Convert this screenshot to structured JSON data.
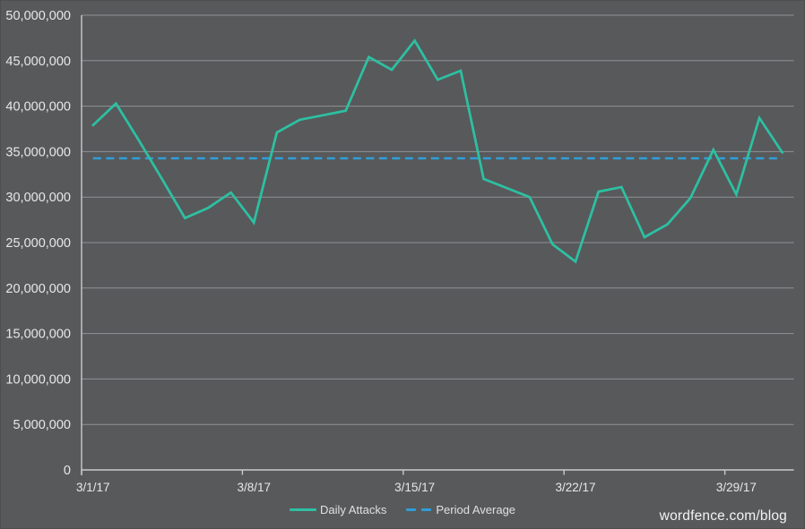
{
  "watermark": {
    "text": "wordfence.com/blog"
  },
  "colors": {
    "background": "#57595B",
    "gridline": "#8F9194",
    "axis": "#C9CBCD",
    "label_text": "#E7E8E9",
    "daily_attacks": "#2DC0A2",
    "period_average": "#2E9FD9"
  },
  "chart_data": {
    "type": "line",
    "title": "",
    "xlabel": "",
    "ylabel": "",
    "grid": "horizontal",
    "legend_position": "bottom",
    "ylim": [
      0,
      50000000
    ],
    "x": [
      "3/1/17",
      "3/2/17",
      "3/3/17",
      "3/4/17",
      "3/5/17",
      "3/6/17",
      "3/7/17",
      "3/8/17",
      "3/9/17",
      "3/10/17",
      "3/11/17",
      "3/12/17",
      "3/13/17",
      "3/14/17",
      "3/15/17",
      "3/16/17",
      "3/17/17",
      "3/18/17",
      "3/19/17",
      "3/20/17",
      "3/21/17",
      "3/22/17",
      "3/23/17",
      "3/24/17",
      "3/25/17",
      "3/26/17",
      "3/27/17",
      "3/28/17",
      "3/29/17",
      "3/30/17",
      "3/31/17"
    ],
    "series": [
      {
        "name": "Daily Attacks",
        "color": "#2DC0A2",
        "line_style": "solid",
        "values": [
          37900000,
          40300000,
          36200000,
          32000000,
          27700000,
          28800000,
          30500000,
          27200000,
          37100000,
          38500000,
          39000000,
          39500000,
          45400000,
          44000000,
          47200000,
          42900000,
          43900000,
          32000000,
          31000000,
          30000000,
          24800000,
          22900000,
          30600000,
          31100000,
          25600000,
          27000000,
          29900000,
          35200000,
          30300000,
          38700000,
          34900000
        ]
      },
      {
        "name": "Period Average",
        "color": "#2E9FD9",
        "line_style": "dashed",
        "constant_value": 34260000
      }
    ],
    "y_ticks": [
      {
        "value": 0,
        "label": "0"
      },
      {
        "value": 5000000,
        "label": "5,000,000"
      },
      {
        "value": 10000000,
        "label": "10,000,000"
      },
      {
        "value": 15000000,
        "label": "15,000,000"
      },
      {
        "value": 20000000,
        "label": "20,000,000"
      },
      {
        "value": 25000000,
        "label": "25,000,000"
      },
      {
        "value": 30000000,
        "label": "30,000,000"
      },
      {
        "value": 35000000,
        "label": "35,000,000"
      },
      {
        "value": 40000000,
        "label": "40,000,000"
      },
      {
        "value": 45000000,
        "label": "45,000,000"
      },
      {
        "value": 50000000,
        "label": "50,000,000"
      }
    ],
    "x_ticks": [
      {
        "index": 0,
        "label": "3/1/17"
      },
      {
        "index": 7,
        "label": "3/8/17"
      },
      {
        "index": 14,
        "label": "3/15/17"
      },
      {
        "index": 21,
        "label": "3/22/17"
      },
      {
        "index": 28,
        "label": "3/29/17"
      }
    ]
  }
}
